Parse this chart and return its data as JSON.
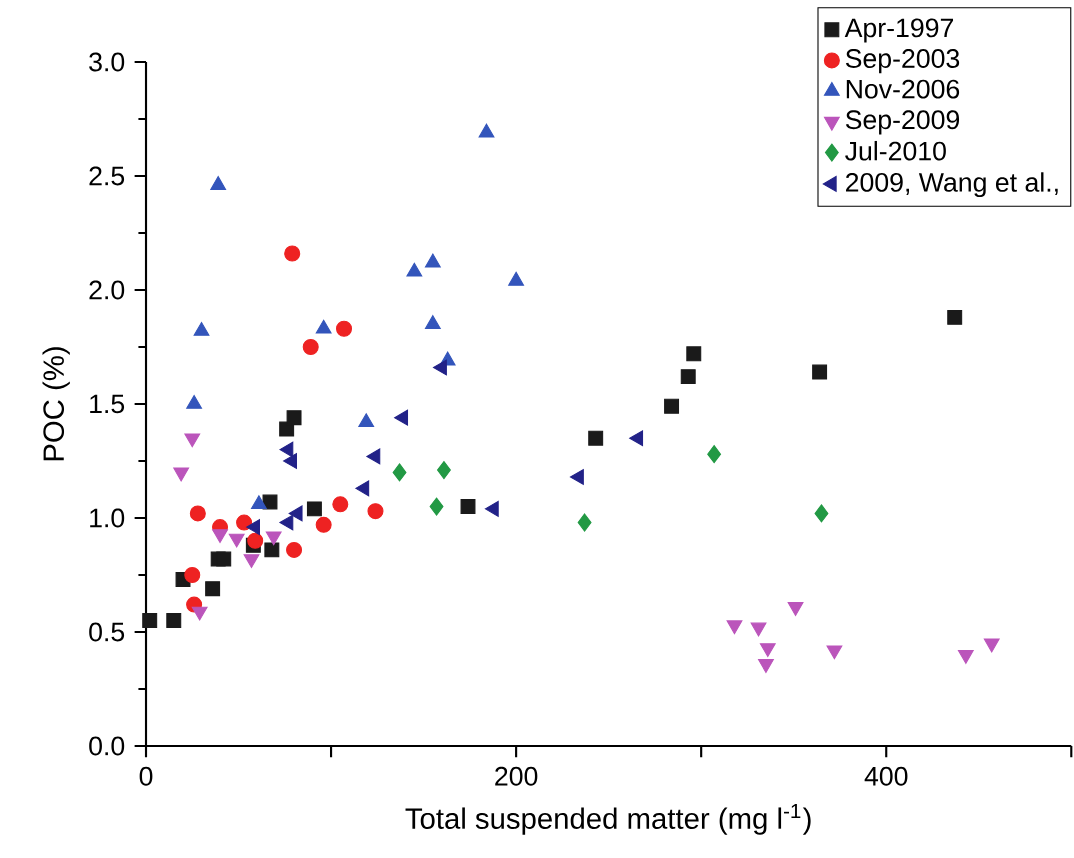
{
  "chart_data": {
    "type": "scatter",
    "xlabel": "Total suspended matter (mg l$^{-1}$)",
    "ylabel": "POC (%)",
    "xlim": [
      0,
      500
    ],
    "ylim": [
      0,
      3
    ],
    "xticks": [
      0,
      {
        "value": 100,
        "label": null
      },
      200,
      {
        "value": 300,
        "label": null
      },
      400,
      {
        "value": 500,
        "label": null
      }
    ],
    "yticks": [
      {
        "value": 0,
        "label": "0.0"
      },
      {
        "value": 0.5,
        "label": "0.5"
      },
      {
        "value": 1,
        "label": "1.0"
      },
      {
        "value": 1.5,
        "label": "1.5"
      },
      {
        "value": 2,
        "label": "2.0"
      },
      {
        "value": 2.5,
        "label": "2.5"
      },
      {
        "value": 3,
        "label": "3.0"
      }
    ],
    "grid": false,
    "legend": "top right",
    "series": [
      {
        "name": "Apr-1997",
        "color": "#1a1a1a",
        "marker": "square",
        "x": [
          2,
          15,
          20,
          36,
          39,
          42,
          67,
          58,
          68,
          91,
          76,
          80,
          174,
          243,
          284,
          293,
          296,
          364,
          437
        ],
        "values": [
          0.55,
          0.55,
          0.73,
          0.69,
          0.82,
          0.82,
          1.07,
          0.88,
          0.86,
          1.04,
          1.39,
          1.44,
          1.05,
          1.35,
          1.49,
          1.62,
          1.72,
          1.64,
          1.88
        ]
      },
      {
        "name": "Sep-2003",
        "color": "#ee2222",
        "marker": "circle",
        "x": [
          79,
          107,
          89,
          28,
          25,
          26,
          40,
          53,
          59,
          80,
          96,
          105,
          124
        ],
        "values": [
          2.16,
          1.83,
          1.75,
          1.02,
          0.75,
          0.62,
          0.96,
          0.98,
          0.9,
          0.86,
          0.97,
          1.06,
          1.03
        ]
      },
      {
        "name": "Nov-2006",
        "color": "#3355bb",
        "marker": "triangle",
        "x": [
          39,
          30,
          26,
          96,
          145,
          155,
          155,
          163,
          119,
          184,
          200,
          61
        ],
        "values": [
          2.46,
          1.82,
          1.5,
          1.83,
          2.08,
          2.12,
          1.85,
          1.69,
          1.42,
          2.69,
          2.04,
          1.06
        ]
      },
      {
        "name": "Sep-2009",
        "color": "#bb55bb",
        "marker": "triangle down",
        "x": [
          25,
          19,
          40,
          49,
          57,
          69,
          29,
          318,
          331,
          336,
          335,
          351,
          372,
          443,
          457
        ],
        "values": [
          1.35,
          1.2,
          0.93,
          0.91,
          0.82,
          0.92,
          0.59,
          0.53,
          0.52,
          0.43,
          0.36,
          0.61,
          0.42,
          0.4,
          0.45
        ]
      },
      {
        "name": "Jul-2010",
        "color": "#229944",
        "marker": "diamond",
        "x": [
          137,
          161,
          157,
          237,
          307,
          365
        ],
        "values": [
          1.2,
          1.21,
          1.05,
          0.98,
          1.28,
          1.02
        ]
      },
      {
        "name": "2009, Wang et al.,",
        "color": "#222288",
        "marker": "triangle left",
        "x": [
          139,
          77,
          79,
          124,
          118,
          82,
          77,
          59,
          160,
          266,
          234,
          188
        ],
        "values": [
          1.44,
          1.3,
          1.25,
          1.27,
          1.13,
          1.02,
          0.98,
          0.96,
          1.66,
          1.35,
          1.18,
          1.04
        ]
      }
    ]
  }
}
